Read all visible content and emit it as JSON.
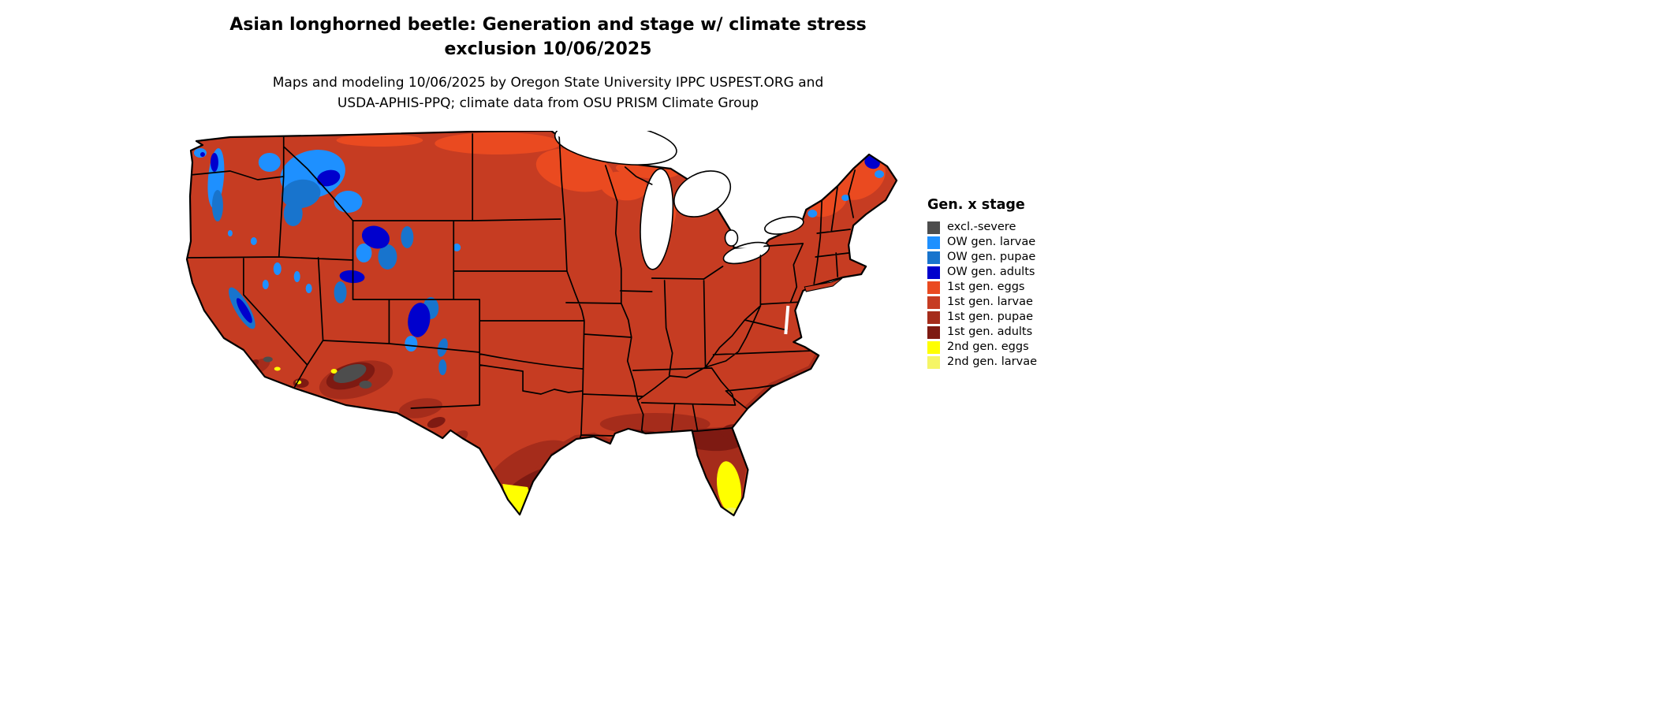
{
  "title": {
    "line1": "Asian longhorned beetle: Generation and stage w/ climate stress",
    "line2": "exclusion 10/06/2025"
  },
  "subtitle": {
    "line1": "Maps and modeling 10/06/2025 by Oregon State University IPPC USPEST.ORG and",
    "line2": "USDA-APHIS-PPQ; climate data from OSU PRISM Climate Group"
  },
  "map": {
    "region": "contiguous United States",
    "kind": "categorical raster phenology map with state borders"
  },
  "colors": {
    "excl_severe": "#4D4D4D",
    "ow_larvae": "#1E90FF",
    "ow_pupae": "#1874CD",
    "ow_adults": "#0000CD",
    "g1_eggs": "#EA4A20",
    "g1_larvae": "#C63C22",
    "g1_pupae": "#A52C1B",
    "g1_adults": "#7E1A12",
    "g2_eggs": "#FFFF00",
    "g2_larvae": "#F5F566"
  },
  "legend": {
    "title": "Gen. x stage",
    "items": [
      {
        "label": "excl.-severe",
        "color": "#4D4D4D"
      },
      {
        "label": "OW gen. larvae",
        "color": "#1E90FF"
      },
      {
        "label": "OW gen. pupae",
        "color": "#1874CD"
      },
      {
        "label": "OW gen. adults",
        "color": "#0000CD"
      },
      {
        "label": "1st gen. eggs",
        "color": "#EA4A20"
      },
      {
        "label": "1st gen. larvae",
        "color": "#C63C22"
      },
      {
        "label": "1st gen. pupae",
        "color": "#A52C1B"
      },
      {
        "label": "1st gen. adults",
        "color": "#7E1A12"
      },
      {
        "label": "2nd gen. eggs",
        "color": "#FFFF00"
      },
      {
        "label": "2nd gen. larvae",
        "color": "#F5F566"
      }
    ]
  }
}
